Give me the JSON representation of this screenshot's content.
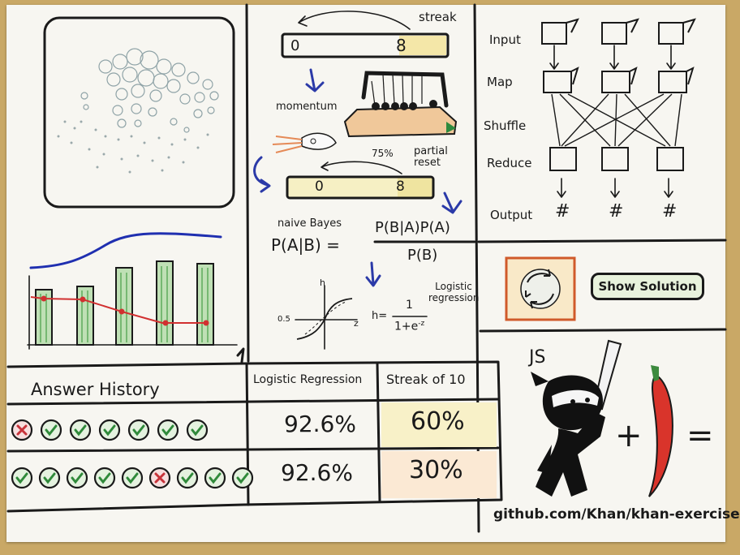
{
  "streak": {
    "label": "streak",
    "start": "0",
    "end": "8",
    "momentum_label": "momentum",
    "percent_label": "75%",
    "partial_reset_label": "partial reset",
    "reset_start": "0",
    "reset_end": "8"
  },
  "bayes": {
    "title": "naive Bayes",
    "lhs": "P(A|B) =",
    "numerator": "P(B|A)P(A)",
    "denominator": "P(B)"
  },
  "logistic": {
    "label": "Logistic regression",
    "y_axis": "h",
    "x_axis": "z",
    "midpoint": "0.5",
    "formula_lhs": "h=",
    "formula_num": "1",
    "formula_den": "1+e",
    "formula_exp": "-z"
  },
  "mapreduce": {
    "stages": [
      "Input",
      "Map",
      "Shuffle",
      "Reduce",
      "Output"
    ],
    "output_symbol": "#"
  },
  "actions": {
    "show_solution": "Show Solution"
  },
  "history": {
    "title": "Answer History",
    "columns": [
      "Logistic Regression",
      "Streak of 10"
    ],
    "rows": [
      {
        "answers": [
          "wrong",
          "right",
          "right",
          "right",
          "right",
          "right",
          "right"
        ],
        "logistic": "92.6%",
        "streak": "60%"
      },
      {
        "answers": [
          "right",
          "right",
          "right",
          "right",
          "right",
          "wrong",
          "right",
          "right",
          "right"
        ],
        "logistic": "92.6%",
        "streak": "30%"
      }
    ]
  },
  "ninja": {
    "title": "JS",
    "plus": "+",
    "equals": "=",
    "url": "github.com/Khan/khan-exercises"
  },
  "colors": {
    "paper": "#f7f6f1",
    "ink": "#1a1a1a",
    "arrow_blue": "#2b3aa8",
    "correct_green": "#2f8a3a",
    "wrong_red": "#c8323a",
    "chili_red": "#d9342b",
    "bar_green": "#3d9a3f"
  }
}
